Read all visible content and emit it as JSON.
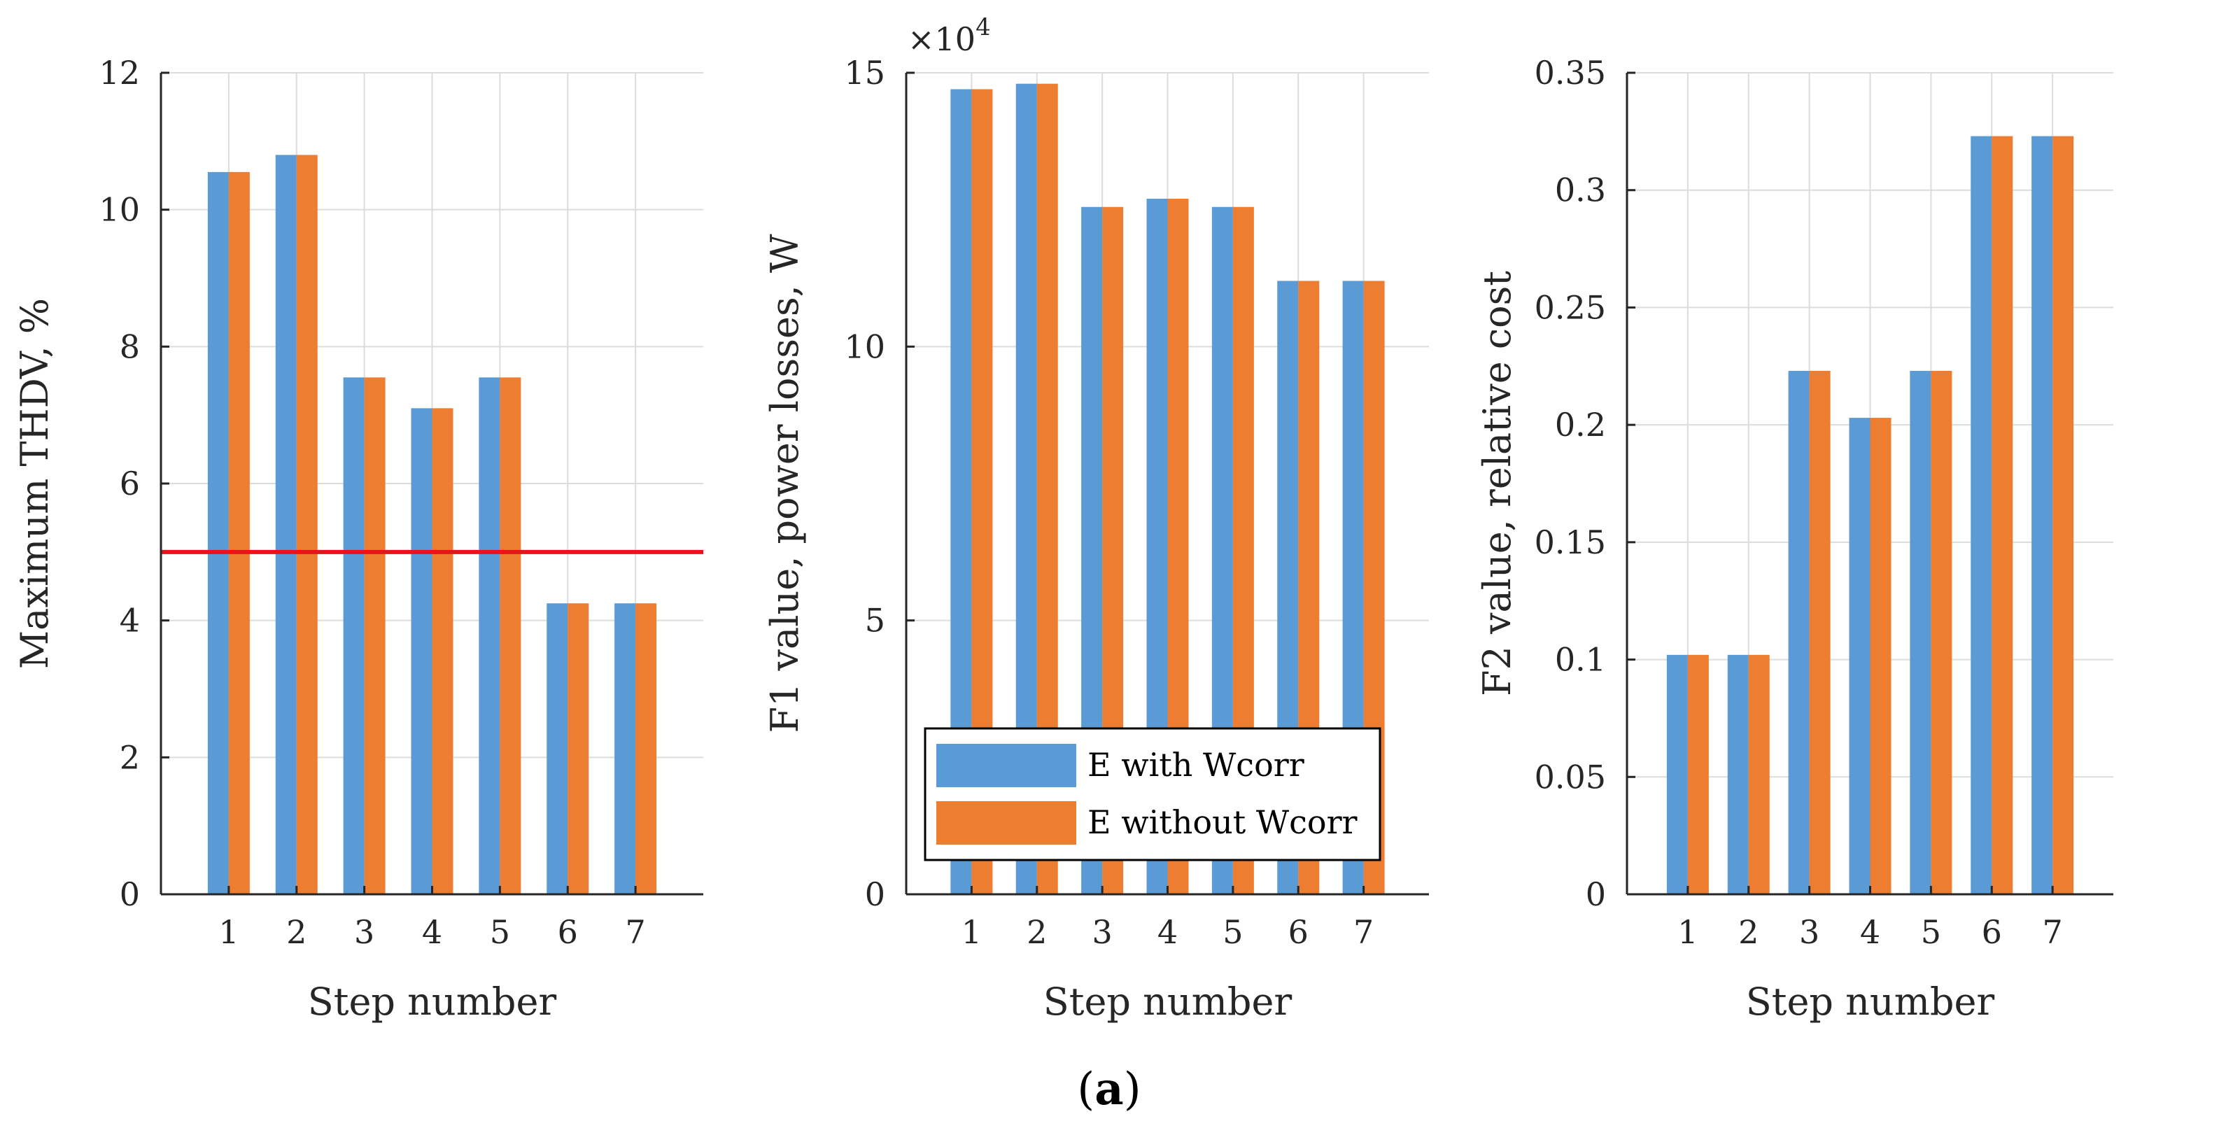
{
  "figure": {
    "caption_open": "(",
    "caption_letter": "a",
    "caption_close": ")"
  },
  "colors": {
    "series1": "#5b9bd5",
    "series2": "#ed7d31",
    "threshold": "#e8141a",
    "grid": "#dcdcdc",
    "axis": "#262626"
  },
  "legend": {
    "entries": [
      "E with Wcorr",
      "E without Wcorr"
    ]
  },
  "chart_data": [
    {
      "type": "bar",
      "title": "",
      "xlabel": "Step number",
      "ylabel": "Maximum THDV, %",
      "categories": [
        "1",
        "2",
        "3",
        "4",
        "5",
        "6",
        "7"
      ],
      "ylim": [
        0,
        12
      ],
      "yticks": [
        0,
        2,
        4,
        6,
        8,
        10,
        12
      ],
      "ytick_labels": [
        "0",
        "2",
        "4",
        "6",
        "8",
        "10",
        "12"
      ],
      "grid": true,
      "series": [
        {
          "name": "E with Wcorr",
          "values": [
            10.55,
            10.8,
            7.55,
            7.1,
            7.55,
            4.25,
            4.25
          ]
        },
        {
          "name": "E without Wcorr",
          "values": [
            10.55,
            10.8,
            7.55,
            7.1,
            7.55,
            4.25,
            4.25
          ]
        }
      ],
      "threshold": 5
    },
    {
      "type": "bar",
      "title": "",
      "xlabel": "Step number",
      "ylabel": "F1 value, power losses, W",
      "multiplier_base": "×10",
      "multiplier_exp": "4",
      "categories": [
        "1",
        "2",
        "3",
        "4",
        "5",
        "6",
        "7"
      ],
      "ylim": [
        0,
        15
      ],
      "yticks": [
        0,
        5,
        10,
        15
      ],
      "ytick_labels": [
        "0",
        "5",
        "10",
        "15"
      ],
      "grid": true,
      "legend_position": "bottom-center",
      "series": [
        {
          "name": "E with Wcorr",
          "values": [
            14.7,
            14.8,
            12.55,
            12.7,
            12.55,
            11.2,
            11.2
          ]
        },
        {
          "name": "E without Wcorr",
          "values": [
            14.7,
            14.8,
            12.55,
            12.7,
            12.55,
            11.2,
            11.2
          ]
        }
      ]
    },
    {
      "type": "bar",
      "title": "",
      "xlabel": "Step number",
      "ylabel": "F2 value, relative cost",
      "categories": [
        "1",
        "2",
        "3",
        "4",
        "5",
        "6",
        "7"
      ],
      "ylim": [
        0,
        0.35
      ],
      "yticks": [
        0,
        0.05,
        0.1,
        0.15,
        0.2,
        0.25,
        0.3,
        0.35
      ],
      "ytick_labels": [
        "0",
        "0.05",
        "0.1",
        "0.15",
        "0.2",
        "0.25",
        "0.3",
        "0.35"
      ],
      "grid": true,
      "series": [
        {
          "name": "E with Wcorr",
          "values": [
            0.102,
            0.102,
            0.223,
            0.203,
            0.223,
            0.323,
            0.323
          ]
        },
        {
          "name": "E without Wcorr",
          "values": [
            0.102,
            0.102,
            0.223,
            0.203,
            0.223,
            0.323,
            0.323
          ]
        }
      ]
    }
  ]
}
